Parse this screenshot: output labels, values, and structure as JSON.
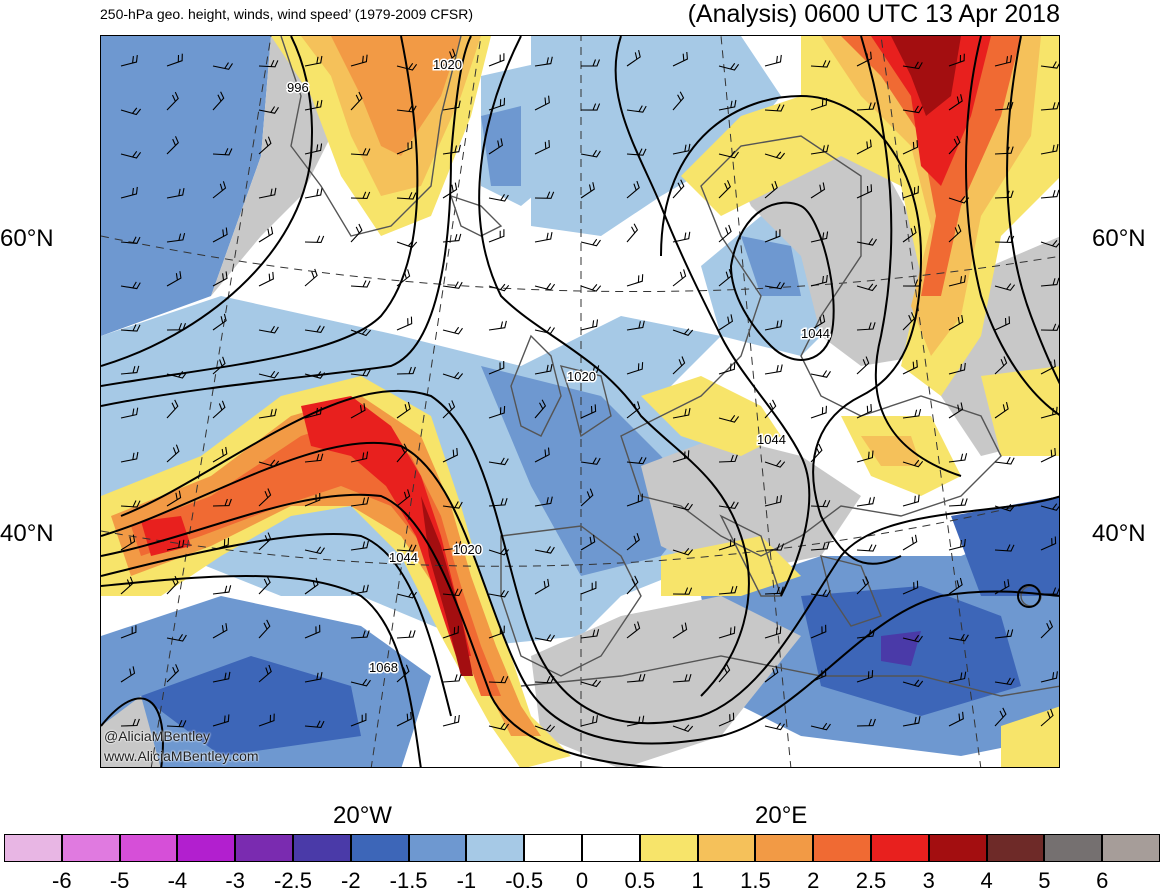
{
  "header": {
    "left_title": "250-hPa geo. height, winds, wind speed’ (1979-2009 CFSR)",
    "right_title": "(Analysis) 0600 UTC 13 Apr 2018"
  },
  "axes": {
    "lat_labels": [
      "60°N",
      "40°N"
    ],
    "lon_labels": [
      "20°W",
      "20°E"
    ]
  },
  "credits": [
    "@AliciaMBentley",
    "www.AliciaMBentley.com"
  ],
  "contour_labels": [
    "996",
    "1020",
    "1044",
    "1020",
    "1044",
    "1020",
    "1044",
    "1068"
  ],
  "colorbar": {
    "ticks": [
      "-6",
      "-5",
      "-4",
      "-3",
      "-2.5",
      "-2",
      "-1.5",
      "-1",
      "-0.5",
      "0",
      "0.5",
      "1",
      "1.5",
      "2",
      "2.5",
      "3",
      "4",
      "5",
      "6"
    ],
    "colors": [
      "#e8b6e4",
      "#e07ae0",
      "#d64fd8",
      "#b21fcf",
      "#7a2bb0",
      "#4a3aa8",
      "#3d66b8",
      "#6e98d0",
      "#a6c9e6",
      "#ffffff",
      "#ffffff",
      "#f7e46a",
      "#f5c15a",
      "#f29a45",
      "#f06a33",
      "#e8201e",
      "#a30e10",
      "#6e2a28",
      "#757070",
      "#a69d99"
    ]
  },
  "map_colors": {
    "land": "#c8c8c8",
    "ocean_neutral": "#ffffff",
    "coast": "#555555",
    "contour": "#000000",
    "grid": "#333333"
  }
}
